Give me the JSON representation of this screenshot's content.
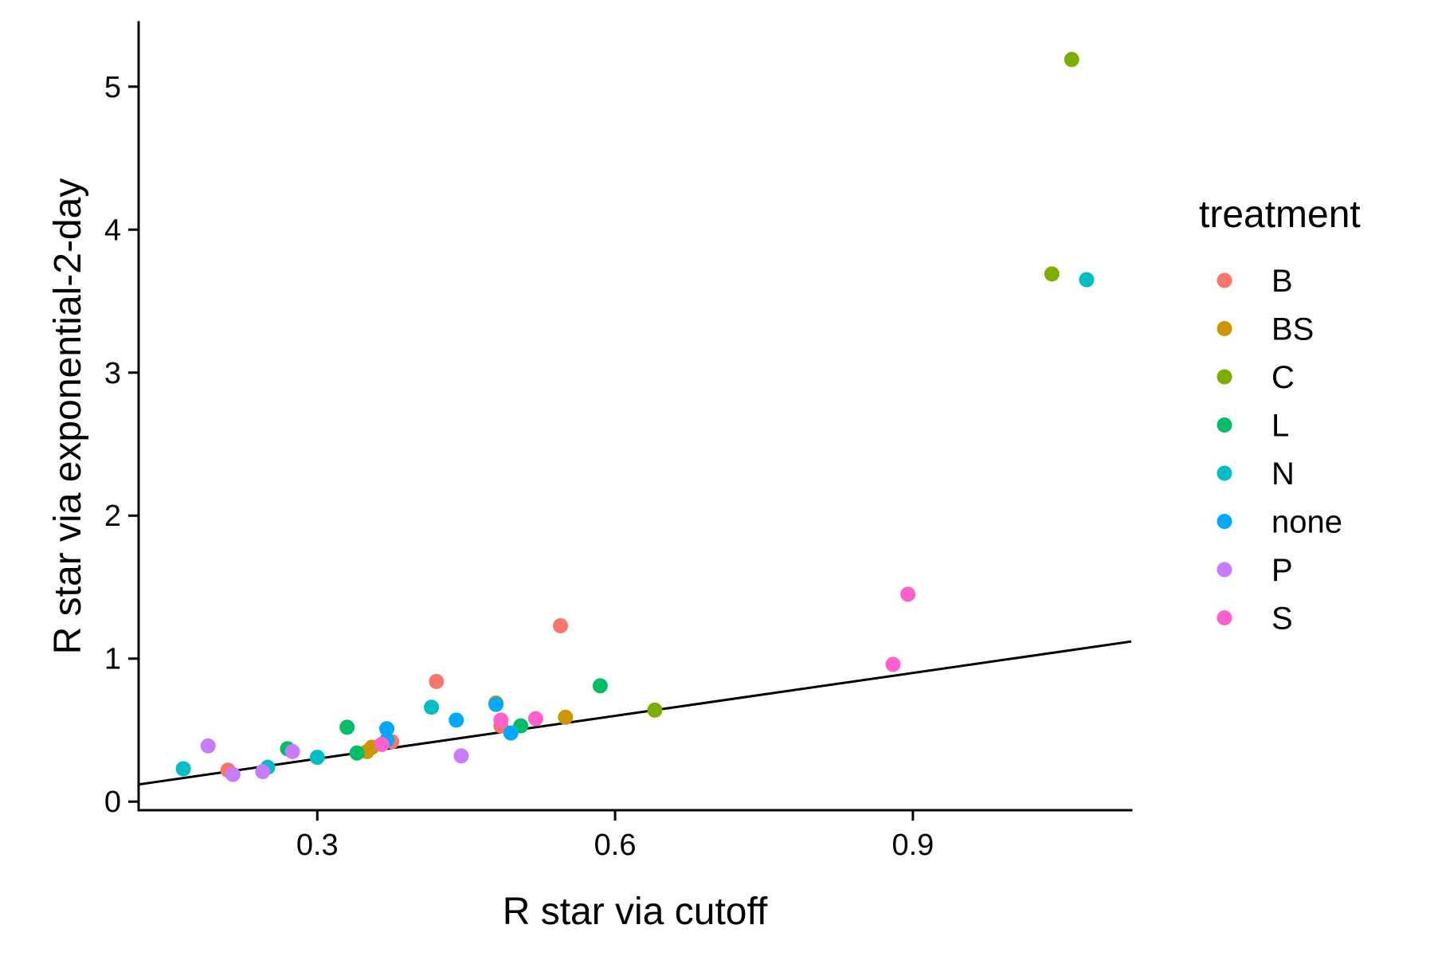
{
  "chart_data": {
    "type": "scatter",
    "xlabel": "R star via cutoff",
    "ylabel": "R star via exponential-2-day",
    "xlim": [
      0.12,
      1.12
    ],
    "ylim": [
      -0.06,
      5.45
    ],
    "x_ticks": [
      0.3,
      0.6,
      0.9
    ],
    "x_tick_labels": [
      "0.3",
      "0.6",
      "0.9"
    ],
    "y_ticks": [
      0,
      1,
      2,
      3,
      4,
      5
    ],
    "y_tick_labels": [
      "0",
      "1",
      "2",
      "3",
      "4",
      "5"
    ],
    "grid": false,
    "legend": {
      "title": "treatment",
      "position": "right"
    },
    "reference_line": {
      "type": "identity",
      "slope": 1,
      "intercept": 0
    },
    "series": [
      {
        "name": "B",
        "color": "#F8766D",
        "points": [
          [
            0.21,
            0.22
          ],
          [
            0.375,
            0.42
          ],
          [
            0.42,
            0.84
          ],
          [
            0.545,
            1.23
          ],
          [
            0.485,
            0.53
          ]
        ]
      },
      {
        "name": "BS",
        "color": "#CD9600",
        "points": [
          [
            0.35,
            0.35
          ],
          [
            0.355,
            0.38
          ],
          [
            0.48,
            0.69
          ],
          [
            0.55,
            0.59
          ]
        ]
      },
      {
        "name": "C",
        "color": "#7CAE00",
        "points": [
          [
            1.04,
            3.69
          ],
          [
            1.06,
            5.19
          ],
          [
            0.64,
            0.64
          ]
        ]
      },
      {
        "name": "L",
        "color": "#00BE67",
        "points": [
          [
            0.27,
            0.37
          ],
          [
            0.33,
            0.52
          ],
          [
            0.34,
            0.34
          ],
          [
            0.505,
            0.53
          ],
          [
            0.585,
            0.81
          ]
        ]
      },
      {
        "name": "N",
        "color": "#00BFC4",
        "points": [
          [
            0.165,
            0.23
          ],
          [
            0.25,
            0.24
          ],
          [
            0.3,
            0.31
          ],
          [
            0.415,
            0.66
          ],
          [
            1.075,
            3.65
          ]
        ]
      },
      {
        "name": "none",
        "color": "#00A9FF",
        "points": [
          [
            0.37,
            0.51
          ],
          [
            0.37,
            0.43
          ],
          [
            0.44,
            0.57
          ],
          [
            0.48,
            0.68
          ],
          [
            0.495,
            0.48
          ]
        ]
      },
      {
        "name": "P",
        "color": "#C77CFF",
        "points": [
          [
            0.19,
            0.39
          ],
          [
            0.215,
            0.19
          ],
          [
            0.245,
            0.21
          ],
          [
            0.275,
            0.35
          ],
          [
            0.445,
            0.32
          ]
        ]
      },
      {
        "name": "S",
        "color": "#FF61CC",
        "points": [
          [
            0.365,
            0.4
          ],
          [
            0.485,
            0.57
          ],
          [
            0.52,
            0.58
          ],
          [
            0.88,
            0.96
          ],
          [
            0.895,
            1.45
          ]
        ]
      }
    ]
  }
}
